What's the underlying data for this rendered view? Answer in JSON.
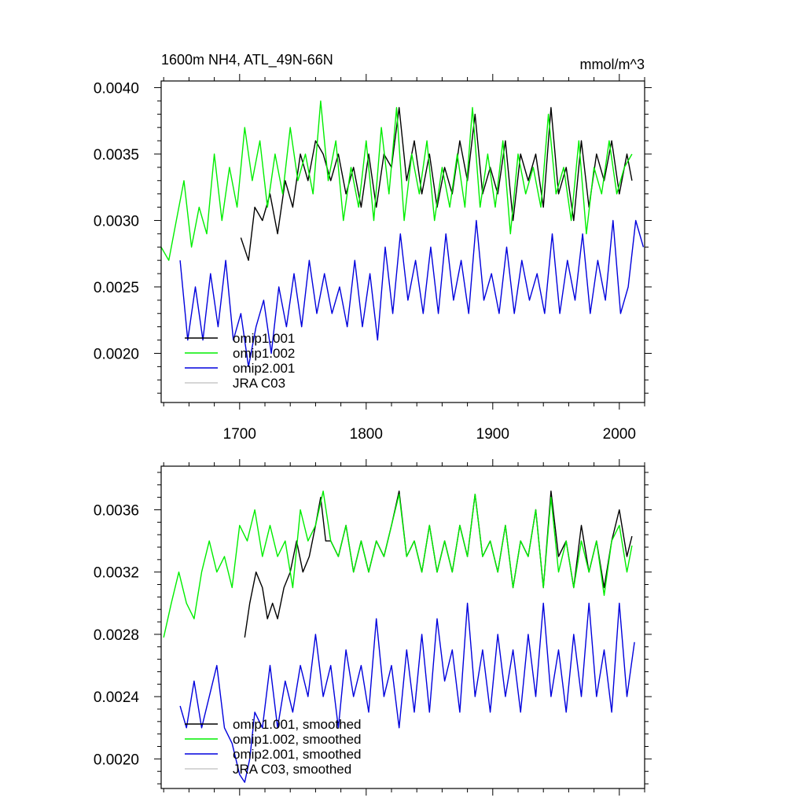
{
  "chart_data": [
    {
      "type": "line",
      "title": "1600m NH4, ATL_49N-66N",
      "units": "mmol/m^3",
      "xlim": [
        1638,
        2020
      ],
      "ylim": [
        0.00163,
        0.00405
      ],
      "x_ticks": [
        1700,
        1800,
        1900,
        2000
      ],
      "x_tick_labels": [
        "1700",
        "1800",
        "1900",
        "2000"
      ],
      "y_ticks": [
        0.002,
        0.0025,
        0.003,
        0.0035,
        0.004
      ],
      "y_tick_labels": [
        "0.0020",
        "0.0025",
        "0.0030",
        "0.0035",
        "0.0040"
      ],
      "legend_position": "lower-left",
      "series": [
        {
          "name": "omip1.001",
          "color": "#000000",
          "x": [
            1701,
            1707,
            1712,
            1718,
            1724,
            1730,
            1736,
            1742,
            1748,
            1754,
            1760,
            1766,
            1772,
            1778,
            1784,
            1790,
            1796,
            1802,
            1808,
            1814,
            1820,
            1826,
            1832,
            1838,
            1844,
            1850,
            1856,
            1862,
            1868,
            1874,
            1880,
            1886,
            1892,
            1898,
            1904,
            1910,
            1916,
            1922,
            1928,
            1934,
            1940,
            1946,
            1952,
            1958,
            1964,
            1970,
            1976,
            1982,
            1988,
            1994,
            2000,
            2006,
            2010
          ],
          "y": [
            0.00287,
            0.0027,
            0.0031,
            0.003,
            0.0032,
            0.0029,
            0.0033,
            0.0031,
            0.0035,
            0.0033,
            0.0036,
            0.0035,
            0.0033,
            0.0035,
            0.0032,
            0.0034,
            0.0031,
            0.0035,
            0.0031,
            0.0035,
            0.0034,
            0.00385,
            0.0033,
            0.0036,
            0.0032,
            0.0035,
            0.0031,
            0.0034,
            0.0032,
            0.0036,
            0.0033,
            0.0038,
            0.0032,
            0.0034,
            0.0032,
            0.0036,
            0.003,
            0.0035,
            0.0033,
            0.0035,
            0.0031,
            0.00385,
            0.0032,
            0.0034,
            0.003,
            0.0036,
            0.0031,
            0.0035,
            0.0033,
            0.0036,
            0.0032,
            0.0035,
            0.0033
          ]
        },
        {
          "name": "omip1.002",
          "color": "#00ee00",
          "x": [
            1638,
            1644,
            1650,
            1656,
            1662,
            1668,
            1674,
            1680,
            1686,
            1692,
            1698,
            1704,
            1710,
            1716,
            1722,
            1728,
            1734,
            1740,
            1746,
            1752,
            1758,
            1764,
            1770,
            1776,
            1782,
            1788,
            1794,
            1800,
            1806,
            1812,
            1818,
            1824,
            1830,
            1836,
            1842,
            1848,
            1854,
            1860,
            1866,
            1872,
            1878,
            1884,
            1890,
            1896,
            1902,
            1908,
            1914,
            1920,
            1926,
            1932,
            1938,
            1944,
            1950,
            1956,
            1962,
            1968,
            1974,
            1980,
            1986,
            1992,
            1998,
            2004,
            2010
          ],
          "y": [
            0.0028,
            0.0027,
            0.003,
            0.0033,
            0.0028,
            0.0031,
            0.0029,
            0.0035,
            0.003,
            0.0034,
            0.0031,
            0.0037,
            0.0033,
            0.0036,
            0.0031,
            0.0035,
            0.0032,
            0.0037,
            0.0033,
            0.0035,
            0.0032,
            0.0039,
            0.0033,
            0.0036,
            0.003,
            0.0034,
            0.0031,
            0.0036,
            0.003,
            0.0037,
            0.0032,
            0.00385,
            0.003,
            0.0035,
            0.0032,
            0.0036,
            0.003,
            0.0034,
            0.0031,
            0.0035,
            0.0031,
            0.00385,
            0.0031,
            0.0035,
            0.0031,
            0.0036,
            0.0029,
            0.0035,
            0.0032,
            0.0034,
            0.0031,
            0.0038,
            0.0032,
            0.0034,
            0.003,
            0.0036,
            0.0029,
            0.0034,
            0.0032,
            0.0036,
            0.0032,
            0.0034,
            0.0035
          ]
        },
        {
          "name": "omip2.001",
          "color": "#0000dd",
          "x": [
            1653,
            1659,
            1665,
            1671,
            1677,
            1683,
            1689,
            1695,
            1701,
            1707,
            1713,
            1719,
            1725,
            1731,
            1737,
            1743,
            1749,
            1755,
            1761,
            1767,
            1773,
            1779,
            1785,
            1791,
            1797,
            1803,
            1809,
            1815,
            1821,
            1827,
            1833,
            1839,
            1845,
            1851,
            1857,
            1863,
            1869,
            1875,
            1881,
            1887,
            1893,
            1899,
            1905,
            1911,
            1917,
            1923,
            1929,
            1935,
            1941,
            1947,
            1953,
            1959,
            1965,
            1971,
            1977,
            1983,
            1989,
            1995,
            2001,
            2007,
            2013,
            2019
          ],
          "y": [
            0.0027,
            0.0021,
            0.0025,
            0.0021,
            0.0026,
            0.0022,
            0.0027,
            0.0021,
            0.0023,
            0.0019,
            0.0022,
            0.0024,
            0.002,
            0.0025,
            0.0022,
            0.0026,
            0.0022,
            0.0027,
            0.0023,
            0.0026,
            0.0023,
            0.0025,
            0.0022,
            0.0027,
            0.0022,
            0.0026,
            0.0021,
            0.0028,
            0.0023,
            0.0029,
            0.0024,
            0.0027,
            0.0023,
            0.0028,
            0.0023,
            0.0029,
            0.0024,
            0.0027,
            0.0023,
            0.003,
            0.0024,
            0.0026,
            0.0023,
            0.0028,
            0.0023,
            0.0027,
            0.0024,
            0.0026,
            0.0023,
            0.0029,
            0.0023,
            0.0027,
            0.0024,
            0.0029,
            0.0023,
            0.0027,
            0.0024,
            0.003,
            0.0023,
            0.0025,
            0.003,
            0.0028
          ]
        },
        {
          "name": "JRA C03",
          "color": "#c8c8c8",
          "x": [],
          "y": []
        }
      ]
    },
    {
      "type": "line",
      "xlim": [
        1638,
        2020
      ],
      "ylim": [
        0.00181,
        0.00388
      ],
      "x_ticks": [
        1700,
        1800,
        1900,
        2000
      ],
      "y_ticks": [
        0.002,
        0.0024,
        0.0028,
        0.0032,
        0.0036
      ],
      "y_tick_labels": [
        "0.0020",
        "0.0024",
        "0.0028",
        "0.0032",
        "0.0036"
      ],
      "legend_position": "lower-left",
      "series": [
        {
          "name": "omip1.001, smoothed",
          "color": "#000000",
          "x": [
            1704,
            1708,
            1713,
            1718,
            1722,
            1726,
            1730,
            1735,
            1740,
            1745,
            1750,
            1755,
            1760,
            1764,
            1768,
            1772,
            1778,
            1784,
            1790,
            1796,
            1802,
            1808,
            1814,
            1820,
            1826,
            1832,
            1838,
            1844,
            1850,
            1856,
            1862,
            1868,
            1874,
            1880,
            1886,
            1892,
            1898,
            1904,
            1910,
            1916,
            1922,
            1928,
            1934,
            1940,
            1946,
            1952,
            1958,
            1964,
            1970,
            1976,
            1982,
            1988,
            1994,
            2000,
            2006,
            2010
          ],
          "y": [
            0.00278,
            0.003,
            0.0032,
            0.0031,
            0.0029,
            0.003,
            0.0029,
            0.0031,
            0.0032,
            0.0034,
            0.0032,
            0.0033,
            0.0035,
            0.00368,
            0.0034,
            0.0034,
            0.0033,
            0.0035,
            0.0032,
            0.0034,
            0.0032,
            0.0034,
            0.0033,
            0.0035,
            0.00372,
            0.0033,
            0.0034,
            0.0032,
            0.0035,
            0.0032,
            0.0034,
            0.0032,
            0.0035,
            0.0033,
            0.0037,
            0.0033,
            0.0034,
            0.0032,
            0.0035,
            0.0031,
            0.0034,
            0.0033,
            0.0036,
            0.0031,
            0.00372,
            0.0033,
            0.0034,
            0.0031,
            0.0035,
            0.0032,
            0.0034,
            0.0031,
            0.0034,
            0.0036,
            0.0033,
            0.00343
          ]
        },
        {
          "name": "omip1.002, smoothed",
          "color": "#00ee00",
          "x": [
            1640,
            1646,
            1652,
            1658,
            1664,
            1670,
            1676,
            1682,
            1688,
            1694,
            1700,
            1706,
            1712,
            1718,
            1724,
            1730,
            1736,
            1742,
            1748,
            1754,
            1760,
            1766,
            1772,
            1778,
            1784,
            1790,
            1796,
            1802,
            1808,
            1814,
            1820,
            1826,
            1832,
            1838,
            1844,
            1850,
            1856,
            1862,
            1868,
            1874,
            1880,
            1886,
            1892,
            1898,
            1904,
            1910,
            1916,
            1922,
            1928,
            1934,
            1940,
            1946,
            1952,
            1958,
            1964,
            1970,
            1976,
            1982,
            1988,
            1994,
            2000,
            2006,
            2010
          ],
          "y": [
            0.00278,
            0.003,
            0.0032,
            0.003,
            0.0029,
            0.0032,
            0.0034,
            0.0032,
            0.0033,
            0.0031,
            0.0035,
            0.0034,
            0.0036,
            0.0033,
            0.0035,
            0.0033,
            0.0034,
            0.0031,
            0.0036,
            0.0034,
            0.0035,
            0.00372,
            0.0034,
            0.0033,
            0.0035,
            0.0032,
            0.0034,
            0.0032,
            0.0034,
            0.0033,
            0.0035,
            0.0037,
            0.0033,
            0.0034,
            0.0032,
            0.0035,
            0.0032,
            0.0034,
            0.0032,
            0.0035,
            0.0033,
            0.0037,
            0.0033,
            0.0034,
            0.0032,
            0.0035,
            0.0031,
            0.0034,
            0.0033,
            0.0036,
            0.0031,
            0.00368,
            0.0032,
            0.0034,
            0.0031,
            0.0034,
            0.0032,
            0.0034,
            0.00305,
            0.0034,
            0.0035,
            0.0032,
            0.00337
          ]
        },
        {
          "name": "omip2.001, smoothed",
          "color": "#0000dd",
          "x": [
            1653,
            1658,
            1664,
            1670,
            1676,
            1682,
            1688,
            1694,
            1700,
            1704,
            1708,
            1712,
            1718,
            1724,
            1730,
            1736,
            1742,
            1748,
            1754,
            1760,
            1766,
            1772,
            1778,
            1784,
            1790,
            1796,
            1802,
            1808,
            1814,
            1820,
            1826,
            1832,
            1838,
            1844,
            1850,
            1856,
            1862,
            1868,
            1874,
            1880,
            1886,
            1892,
            1898,
            1904,
            1910,
            1916,
            1922,
            1928,
            1934,
            1940,
            1946,
            1952,
            1958,
            1964,
            1970,
            1976,
            1982,
            1988,
            1994,
            2000,
            2006,
            2012
          ],
          "y": [
            0.00234,
            0.0022,
            0.0025,
            0.0022,
            0.0024,
            0.0026,
            0.0022,
            0.0021,
            0.0019,
            0.00185,
            0.002,
            0.0023,
            0.0022,
            0.0026,
            0.0022,
            0.0025,
            0.0023,
            0.0026,
            0.0024,
            0.0028,
            0.0024,
            0.0026,
            0.0022,
            0.0027,
            0.0024,
            0.0026,
            0.0023,
            0.0029,
            0.0024,
            0.0026,
            0.0022,
            0.0027,
            0.0023,
            0.0028,
            0.0023,
            0.0029,
            0.0025,
            0.0027,
            0.0023,
            0.003,
            0.0024,
            0.0027,
            0.0023,
            0.0028,
            0.0024,
            0.0027,
            0.0023,
            0.0028,
            0.0024,
            0.003,
            0.0024,
            0.0027,
            0.0023,
            0.0028,
            0.0024,
            0.003,
            0.0024,
            0.0027,
            0.0023,
            0.003,
            0.0024,
            0.00275
          ]
        },
        {
          "name": "JRA C03, smoothed",
          "color": "#c8c8c8",
          "x": [],
          "y": []
        }
      ]
    }
  ]
}
